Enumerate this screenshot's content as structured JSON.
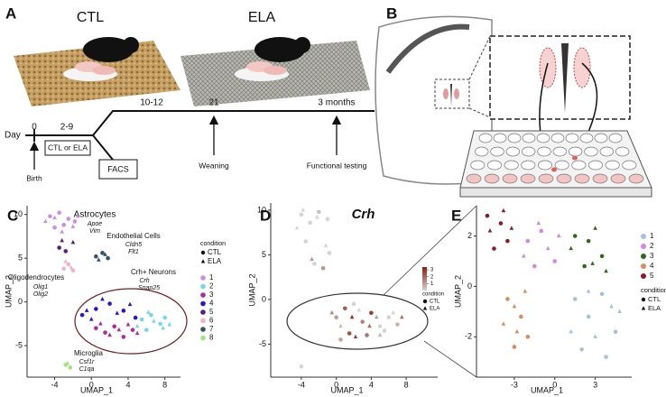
{
  "panel_a": {
    "label": "A",
    "groups": [
      "CTL",
      "ELA"
    ],
    "day_label": "Day",
    "timepoints": [
      "0",
      "2-9",
      "10-12",
      "21",
      "3 months"
    ],
    "boxes": [
      "CTL or ELA",
      "FACS"
    ],
    "events": [
      "Birth",
      "Weaning",
      "Functional testing"
    ]
  },
  "panel_b": {
    "label": "B"
  },
  "chart_data": [
    {
      "type": "scatter",
      "label": "C",
      "xlabel": "UMAP_1",
      "ylabel": "UMAP_2",
      "xlim": [
        -7,
        9.7
      ],
      "ylim": [
        -8.6,
        11
      ],
      "xticks": [
        -4,
        0,
        4,
        8
      ],
      "yticks": [
        -5,
        0,
        5,
        10
      ],
      "legend_title": "condition",
      "conditions": [
        "CTL",
        "ELA"
      ],
      "annotations": [
        "Astrocytes",
        "Apoe",
        "Vim",
        "Endothelial Cells",
        "Cldn5",
        "Flt1",
        "Oligodendrocytes",
        "Olig1",
        "Olig2",
        "Crh+ Neurons",
        "Crh",
        "Snap25",
        "Microglia",
        "Csf1r",
        "C1qa"
      ],
      "series": [
        {
          "name": "1",
          "color": "#c98ee5",
          "x": [
            -4.5,
            -3.5,
            -2.5,
            -4,
            -3,
            -1.8,
            -5,
            -4,
            -3.2,
            -2,
            -1.5
          ],
          "y": [
            9.8,
            10.2,
            9.5,
            8.5,
            8.8,
            9.2,
            9.2,
            9.6,
            8,
            8.6,
            9.8
          ],
          "condition": [
            "CTL",
            "CTL",
            "CTL",
            "CTL",
            "CTL",
            "CTL",
            "ELA",
            "ELA",
            "ELA",
            "ELA",
            "ELA"
          ]
        },
        {
          "name": "2",
          "color": "#72d8e8",
          "x": [
            5.5,
            6.5,
            7.5,
            6,
            8,
            5,
            6.8,
            7.8,
            6.2,
            8.5
          ],
          "y": [
            -2,
            -1.5,
            -2.5,
            -3.2,
            -1.8,
            -2.8,
            -2.2,
            -3,
            -1.2,
            -2.6
          ],
          "condition": [
            "CTL",
            "CTL",
            "CTL",
            "CTL",
            "CTL",
            "ELA",
            "ELA",
            "ELA",
            "ELA",
            "ELA"
          ]
        },
        {
          "name": "3",
          "color": "#b5299a",
          "x": [
            0.5,
            1.5,
            2.5,
            3.5,
            4.5,
            1,
            2,
            3,
            4,
            5
          ],
          "y": [
            -3,
            -3.5,
            -2.8,
            -4,
            -3.2,
            -2.5,
            -3.8,
            -3.2,
            -2.6,
            -3.6
          ],
          "condition": [
            "CTL",
            "CTL",
            "CTL",
            "CTL",
            "CTL",
            "ELA",
            "ELA",
            "ELA",
            "ELA",
            "ELA"
          ]
        },
        {
          "name": "4",
          "color": "#2b12d6",
          "x": [
            -1,
            0.5,
            2,
            3.5,
            4.8,
            0,
            1.2,
            2.8,
            4.2,
            -0.5
          ],
          "y": [
            -1.5,
            -0.8,
            -0.2,
            -1,
            -1.8,
            -2,
            0.3,
            -1.3,
            -0.3,
            -1
          ],
          "condition": [
            "CTL",
            "CTL",
            "CTL",
            "CTL",
            "CTL",
            "ELA",
            "ELA",
            "ELA",
            "ELA",
            "ELA"
          ]
        },
        {
          "name": "5",
          "color": "#5b1d7d",
          "x": [
            -3.5,
            -2.8,
            -2,
            -3.2
          ],
          "y": [
            6.2,
            5.8,
            6.8,
            7
          ],
          "condition": [
            "CTL",
            "CTL",
            "ELA",
            "ELA"
          ]
        },
        {
          "name": "6",
          "color": "#f3b3c6",
          "x": [
            -3,
            -2.5,
            -2,
            -2.8,
            -2.2
          ],
          "y": [
            3.8,
            4.3,
            3.6,
            4.6,
            3.9
          ],
          "condition": [
            "CTL",
            "CTL",
            "CTL",
            "ELA",
            "ELA"
          ]
        },
        {
          "name": "7",
          "color": "#34506e",
          "x": [
            0.5,
            1.2,
            1.8,
            0.8,
            1.5
          ],
          "y": [
            5.2,
            5.6,
            5,
            4.8,
            5.4
          ],
          "condition": [
            "CTL",
            "CTL",
            "CTL",
            "ELA",
            "ELA"
          ]
        },
        {
          "name": "8",
          "color": "#a3e37e",
          "x": [
            -2.8,
            -2.3,
            -2.6
          ],
          "y": [
            -7.2,
            -7.5,
            -7
          ],
          "condition": [
            "CTL",
            "CTL",
            "ELA"
          ]
        }
      ]
    },
    {
      "type": "scatter",
      "label": "D",
      "title": "Crh",
      "xlabel": "UMAP_1",
      "ylabel": "UMAP_2",
      "xlim": [
        -7.5,
        11.6
      ],
      "ylim": [
        -8.7,
        10.8
      ],
      "xticks": [
        -4,
        0,
        4,
        8
      ],
      "yticks": [
        -5,
        0,
        5,
        10
      ],
      "colorbar": {
        "lim": [
          0,
          3.4
        ],
        "ticks": [
          1,
          2,
          3
        ],
        "low": "#d4d4d4",
        "high": "#8c1e0a"
      },
      "legend_title": "condition",
      "conditions": [
        "CTL",
        "ELA"
      ],
      "series": [
        {
          "x": [
            -4,
            -3,
            -2,
            -1,
            -3.5,
            -2.5,
            -0.8,
            -1.5,
            0,
            1,
            2,
            3,
            4,
            5,
            6,
            7,
            1.5,
            3.5,
            5.5,
            -4,
            0.5,
            -3.8,
            -2.2,
            -1.2,
            -4.5,
            -0.5,
            0.5,
            1.8,
            2.6,
            3.8,
            4.6,
            6.5,
            7.5,
            2.2,
            5,
            -2.8
          ],
          "y": [
            9.5,
            8.6,
            9.8,
            9,
            6.5,
            4,
            5.2,
            3.5,
            -2,
            -1,
            -0.5,
            -2.5,
            -1.5,
            -3,
            -2,
            -2.8,
            -3.8,
            -4,
            -3.5,
            -7.5,
            -4.5,
            10,
            9.2,
            6,
            8,
            -1.5,
            -3,
            -2,
            -1.2,
            -3,
            -2,
            -1.5,
            -2,
            -4.2,
            -4,
            4.5
          ],
          "values": [
            0,
            0,
            0.4,
            0,
            0,
            0,
            0,
            1.2,
            1,
            2.2,
            0,
            1.5,
            2.8,
            0,
            0,
            0.6,
            2.5,
            1.8,
            0,
            0,
            0.9,
            0,
            0,
            0,
            0,
            1.5,
            0.4,
            3,
            0,
            2,
            1,
            0,
            1.8,
            2.6,
            0.5,
            1.1
          ],
          "condition": [
            "CTL",
            "CTL",
            "CTL",
            "CTL",
            "CTL",
            "CTL",
            "CTL",
            "CTL",
            "CTL",
            "CTL",
            "CTL",
            "CTL",
            "CTL",
            "CTL",
            "CTL",
            "CTL",
            "CTL",
            "CTL",
            "CTL",
            "CTL",
            "CTL",
            "ELA",
            "ELA",
            "ELA",
            "ELA",
            "ELA",
            "ELA",
            "ELA",
            "ELA",
            "ELA",
            "ELA",
            "ELA",
            "ELA",
            "ELA",
            "ELA",
            "ELA"
          ]
        }
      ]
    },
    {
      "type": "scatter",
      "label": "E",
      "xlabel": "UMAP_1",
      "ylabel": "UMAP_2",
      "xlim": [
        -5.8,
        5.7
      ],
      "ylim": [
        -3.6,
        3.2
      ],
      "xticks": [
        -3,
        0,
        3
      ],
      "yticks": [
        -2,
        0,
        2
      ],
      "legend_title": "condition",
      "conditions": [
        "CTL",
        "ELA"
      ],
      "series": [
        {
          "name": "1",
          "color": "#a4c2d9",
          "x": [
            1.5,
            2.5,
            3.5,
            4.5,
            2,
            3.8,
            1.2,
            3,
            4.2,
            2.5,
            4.8
          ],
          "y": [
            -0.5,
            -1.2,
            -0.3,
            -1.8,
            -2.5,
            -2.8,
            -1.8,
            -2,
            -0.8,
            -0.2,
            -1
          ],
          "condition": [
            "CTL",
            "CTL",
            "CTL",
            "CTL",
            "CTL",
            "CTL",
            "ELA",
            "ELA",
            "ELA",
            "ELA",
            "ELA"
          ]
        },
        {
          "name": "2",
          "color": "#d585e3",
          "x": [
            -2,
            -1,
            0,
            -1.5,
            -2.3,
            -0.5,
            0.3,
            -1.2
          ],
          "y": [
            1.8,
            2.2,
            1,
            0.8,
            1.2,
            1.5,
            2,
            2.5
          ],
          "condition": [
            "CTL",
            "CTL",
            "CTL",
            "CTL",
            "ELA",
            "ELA",
            "ELA",
            "ELA"
          ]
        },
        {
          "name": "3",
          "color": "#2f6b1c",
          "x": [
            1.5,
            2.5,
            3.5,
            2.2,
            1.2,
            3,
            3.8,
            2.8
          ],
          "y": [
            2,
            1.8,
            1.2,
            0.8,
            1.5,
            2.3,
            0.6,
            0.9
          ],
          "condition": [
            "CTL",
            "CTL",
            "CTL",
            "CTL",
            "ELA",
            "ELA",
            "ELA",
            "ELA"
          ]
        },
        {
          "name": "4",
          "color": "#d98c62",
          "x": [
            -3.5,
            -2.5,
            -2,
            -3,
            -3.8,
            -3,
            -2.2,
            -2.8
          ],
          "y": [
            -0.5,
            -1.2,
            -2,
            -2.4,
            -1.5,
            -0.8,
            -0.2,
            -1.8
          ],
          "condition": [
            "CTL",
            "CTL",
            "CTL",
            "CTL",
            "ELA",
            "ELA",
            "ELA",
            "ELA"
          ]
        },
        {
          "name": "5",
          "color": "#8b1b24",
          "x": [
            -5,
            -4,
            -3.5,
            -4.5,
            -4.8,
            -3.8,
            -3.2
          ],
          "y": [
            2.8,
            2.5,
            1.8,
            1.5,
            2.2,
            3,
            2.3
          ],
          "condition": [
            "CTL",
            "CTL",
            "CTL",
            "CTL",
            "ELA",
            "ELA",
            "ELA"
          ]
        }
      ]
    }
  ]
}
